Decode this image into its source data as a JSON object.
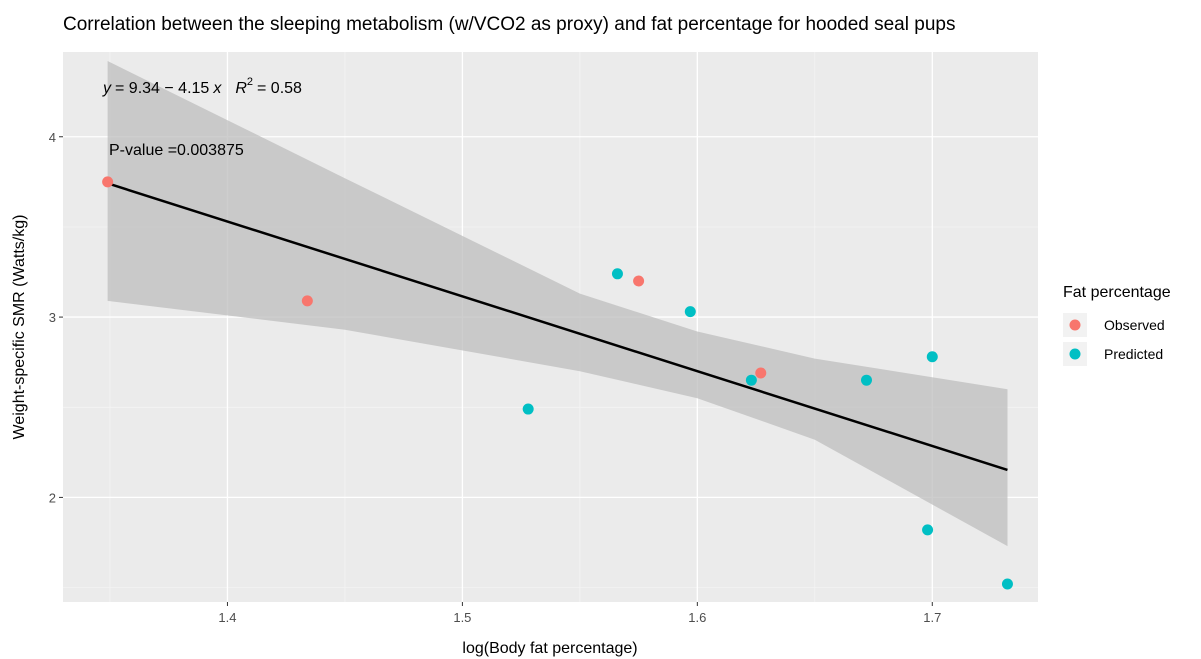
{
  "chart_data": {
    "type": "scatter",
    "title": "Correlation between the sleeping metabolism (w/VCO2 as proxy) and fat percentage for hooded seal pups",
    "xlabel": "log(Body fat percentage)",
    "ylabel": "Weight-specific SMR (Watts/kg)",
    "xlim": [
      1.33,
      1.745
    ],
    "ylim": [
      1.42,
      4.47
    ],
    "x_ticks": [
      1.4,
      1.5,
      1.6,
      1.7
    ],
    "x_tick_labels": [
      "1.4",
      "1.5",
      "1.6",
      "1.7"
    ],
    "y_ticks": [
      2,
      3,
      4
    ],
    "y_tick_labels": [
      "2",
      "3",
      "4"
    ],
    "grid": true,
    "legend": {
      "title": "Fat percentage",
      "placement": "right",
      "entries": [
        {
          "label": "Observed",
          "color": "#F8766D"
        },
        {
          "label": "Predicted",
          "color": "#00BFC4"
        }
      ]
    },
    "series": [
      {
        "name": "Observed",
        "color": "#F8766D",
        "points": [
          {
            "x": 1.349,
            "y": 3.75
          },
          {
            "x": 1.434,
            "y": 3.09
          },
          {
            "x": 1.575,
            "y": 3.2
          },
          {
            "x": 1.627,
            "y": 2.69
          }
        ]
      },
      {
        "name": "Predicted",
        "color": "#00BFC4",
        "points": [
          {
            "x": 1.528,
            "y": 2.49
          },
          {
            "x": 1.566,
            "y": 3.24
          },
          {
            "x": 1.597,
            "y": 3.03
          },
          {
            "x": 1.623,
            "y": 2.65
          },
          {
            "x": 1.672,
            "y": 2.65
          },
          {
            "x": 1.7,
            "y": 2.78
          },
          {
            "x": 1.698,
            "y": 1.82
          },
          {
            "x": 1.732,
            "y": 1.52
          }
        ]
      }
    ],
    "regression": {
      "intercept": 9.34,
      "slope": -4.15,
      "x_range": [
        1.349,
        1.732
      ],
      "color": "#000000",
      "confidence_band": {
        "color": "#bdbdbd",
        "at_x": [
          1.349,
          1.45,
          1.55,
          1.6,
          1.65,
          1.732
        ],
        "lower": [
          3.09,
          2.93,
          2.7,
          2.55,
          2.32,
          1.73
        ],
        "upper": [
          4.42,
          3.77,
          3.13,
          2.92,
          2.77,
          2.6
        ]
      }
    },
    "annotations": {
      "equation": {
        "y_part": "y",
        "eq_part": "= 9.34 − 4.15",
        "x_part": "x",
        "r_part": "R",
        "r_exp": "2",
        "r_value": "= 0.58"
      },
      "pvalue": "P-value =0.003875"
    },
    "colors": {
      "panel_background": "#ebebeb",
      "grid_major": "#ffffff",
      "grid_minor": "#f5f5f5"
    }
  }
}
